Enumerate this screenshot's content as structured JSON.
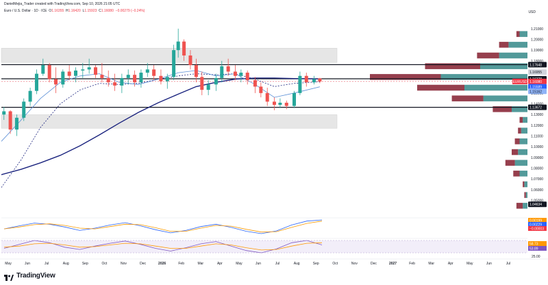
{
  "header": {
    "author_line": "DanielMejia_Trader created with TradingView.com, Sep 10, 2026 21:05 UTC",
    "symbol_line": "Euro / U.S. Dollar · 1D · ICE",
    "ohlc": {
      "o_label": "O",
      "o": "1.16355",
      "h_label": "H",
      "h": "1.16420",
      "l_label": "L",
      "l": "1.15923",
      "c_label": "C",
      "c": "1.16080",
      "change": "−0.00279 (−0.24%)"
    },
    "currency": "USD"
  },
  "logo": {
    "text": "TradingView",
    "icon": "tradingview-logo-icon"
  },
  "colors": {
    "up": "#26a69a",
    "down": "#ef5350",
    "ma_slow": "#1a237e",
    "ma_fast": "#5b8fd6",
    "profile_up": "#3f8f8f",
    "profile_down": "#8b2a3a",
    "zone": "#e6e6e6"
  },
  "chart_data": [
    {
      "type": "candlestick",
      "title": "",
      "ylim": [
        1.035,
        1.215
      ],
      "xlim": [
        "2025-05-01",
        "2027-07-31"
      ],
      "x_ticks": [
        "May",
        "Jun",
        "Jul",
        "Aug",
        "Sep",
        "Oct",
        "Nov",
        "Dec",
        "2026",
        "Feb",
        "Mar",
        "Apr",
        "May",
        "Jun",
        "Jul",
        "Aug",
        "Sep",
        "Oct",
        "Nov",
        "Dec",
        "2027",
        "Feb",
        "Mar",
        "Apr",
        "May",
        "Jun",
        "Jul"
      ],
      "y_ticks": [
        "1.21000",
        "1.20000",
        "1.19000",
        "1.18000",
        "1.16000",
        "1.15000",
        "1.14000",
        "1.13000",
        "1.12000",
        "1.11000",
        "1.10000",
        "1.09000",
        "1.08000",
        "1.07000",
        "1.06000",
        "1.05000"
      ],
      "price_tags": [
        {
          "label": "1.17648",
          "value": 1.17648,
          "style": "dark"
        },
        {
          "label": "1.16955",
          "value": 1.16955,
          "style": "light"
        },
        {
          "label": "1.16328",
          "value": 1.16328,
          "style": "dark"
        },
        {
          "label": "EURUSD",
          "value": 1.1608,
          "style": "red-left"
        },
        {
          "label": "1.16080",
          "value": 1.1608,
          "style": "red"
        },
        {
          "label": "1.15589",
          "value": 1.15589,
          "style": "blue"
        },
        {
          "label": "1.15162",
          "value": 1.15162,
          "style": "lightblue"
        },
        {
          "label": "1.13672",
          "value": 1.13672,
          "style": "dark"
        },
        {
          "label": "1.04634",
          "value": 1.04634,
          "style": "dark"
        }
      ],
      "horizontal_levels": [
        1.17648,
        1.16328,
        1.13672
      ],
      "zones": [
        {
          "from": 1.1785,
          "to": 1.1918
        },
        {
          "from": 1.1172,
          "to": 1.1298
        }
      ],
      "ma_slow": [
        [
          "2025-05-01",
          1.074
        ],
        [
          "2025-06-01",
          1.079
        ],
        [
          "2025-07-01",
          1.085
        ],
        [
          "2025-08-01",
          1.092
        ],
        [
          "2025-09-01",
          1.101
        ],
        [
          "2025-10-01",
          1.111
        ],
        [
          "2025-11-01",
          1.122
        ],
        [
          "2025-12-01",
          1.132
        ],
        [
          "2026-01-01",
          1.141
        ],
        [
          "2026-02-01",
          1.149
        ],
        [
          "2026-03-01",
          1.156
        ],
        [
          "2026-04-01",
          1.16
        ],
        [
          "2026-05-01",
          1.163
        ],
        [
          "2026-06-01",
          1.164
        ],
        [
          "2026-07-01",
          1.164
        ],
        [
          "2026-08-01",
          1.1635
        ],
        [
          "2026-09-10",
          1.1632
        ]
      ],
      "ma_fast": [
        [
          "2025-05-01",
          1.105
        ],
        [
          "2025-06-01",
          1.125
        ],
        [
          "2025-07-01",
          1.145
        ],
        [
          "2025-08-01",
          1.16
        ],
        [
          "2025-09-01",
          1.166
        ],
        [
          "2025-10-01",
          1.168
        ],
        [
          "2025-11-01",
          1.16
        ],
        [
          "2025-12-01",
          1.158
        ],
        [
          "2026-01-01",
          1.163
        ],
        [
          "2026-02-01",
          1.169
        ],
        [
          "2026-03-01",
          1.171
        ],
        [
          "2026-04-01",
          1.166
        ],
        [
          "2026-05-01",
          1.168
        ],
        [
          "2026-06-01",
          1.158
        ],
        [
          "2026-07-01",
          1.146
        ],
        [
          "2026-08-01",
          1.15
        ],
        [
          "2026-09-10",
          1.1558
        ]
      ],
      "ma_mid": [
        [
          "2025-05-01",
          1.062
        ],
        [
          "2025-06-01",
          1.088
        ],
        [
          "2025-07-01",
          1.118
        ],
        [
          "2025-08-01",
          1.14
        ],
        [
          "2025-09-01",
          1.153
        ],
        [
          "2025-10-01",
          1.159
        ],
        [
          "2025-11-01",
          1.158
        ],
        [
          "2025-12-01",
          1.159
        ],
        [
          "2026-01-01",
          1.163
        ],
        [
          "2026-02-01",
          1.166
        ],
        [
          "2026-03-01",
          1.168
        ],
        [
          "2026-04-01",
          1.167
        ],
        [
          "2026-05-01",
          1.168
        ],
        [
          "2026-06-01",
          1.163
        ],
        [
          "2026-07-01",
          1.156
        ],
        [
          "2026-08-01",
          1.159
        ],
        [
          "2026-09-10",
          1.1605
        ]
      ],
      "candles": [
        [
          "2025-05-05",
          1.13,
          1.137,
          1.125,
          1.133
        ],
        [
          "2025-05-15",
          1.133,
          1.134,
          1.112,
          1.116
        ],
        [
          "2025-05-25",
          1.116,
          1.13,
          1.11,
          1.127
        ],
        [
          "2025-06-05",
          1.127,
          1.145,
          1.124,
          1.142
        ],
        [
          "2025-06-15",
          1.142,
          1.155,
          1.138,
          1.152
        ],
        [
          "2025-06-25",
          1.152,
          1.172,
          1.149,
          1.168
        ],
        [
          "2025-07-05",
          1.168,
          1.182,
          1.166,
          1.176
        ],
        [
          "2025-07-15",
          1.176,
          1.178,
          1.16,
          1.163
        ],
        [
          "2025-07-25",
          1.163,
          1.174,
          1.15,
          1.158
        ],
        [
          "2025-08-05",
          1.158,
          1.172,
          1.155,
          1.17
        ],
        [
          "2025-08-15",
          1.17,
          1.176,
          1.162,
          1.166
        ],
        [
          "2025-08-25",
          1.166,
          1.174,
          1.16,
          1.171
        ],
        [
          "2025-09-05",
          1.171,
          1.178,
          1.164,
          1.172
        ],
        [
          "2025-09-15",
          1.172,
          1.182,
          1.168,
          1.174
        ],
        [
          "2025-09-25",
          1.174,
          1.176,
          1.164,
          1.167
        ],
        [
          "2025-10-05",
          1.167,
          1.178,
          1.16,
          1.164
        ],
        [
          "2025-10-15",
          1.164,
          1.171,
          1.156,
          1.16
        ],
        [
          "2025-10-25",
          1.16,
          1.168,
          1.152,
          1.157
        ],
        [
          "2025-11-05",
          1.157,
          1.168,
          1.15,
          1.164
        ],
        [
          "2025-11-15",
          1.164,
          1.172,
          1.158,
          1.167
        ],
        [
          "2025-11-25",
          1.167,
          1.171,
          1.156,
          1.16
        ],
        [
          "2025-12-05",
          1.16,
          1.172,
          1.155,
          1.169
        ],
        [
          "2025-12-15",
          1.169,
          1.178,
          1.165,
          1.172
        ],
        [
          "2025-12-25",
          1.172,
          1.176,
          1.162,
          1.166
        ],
        [
          "2026-01-05",
          1.166,
          1.172,
          1.158,
          1.161
        ],
        [
          "2026-01-15",
          1.161,
          1.168,
          1.154,
          1.165
        ],
        [
          "2026-01-25",
          1.165,
          1.195,
          1.162,
          1.19
        ],
        [
          "2026-02-01",
          1.19,
          1.21,
          1.183,
          1.198
        ],
        [
          "2026-02-10",
          1.198,
          1.2,
          1.18,
          1.185
        ],
        [
          "2026-02-20",
          1.185,
          1.19,
          1.172,
          1.176
        ],
        [
          "2026-03-01",
          1.176,
          1.182,
          1.16,
          1.165
        ],
        [
          "2026-03-10",
          1.165,
          1.17,
          1.148,
          1.153
        ],
        [
          "2026-03-20",
          1.153,
          1.162,
          1.148,
          1.158
        ],
        [
          "2026-04-01",
          1.158,
          1.168,
          1.152,
          1.164
        ],
        [
          "2026-04-10",
          1.164,
          1.18,
          1.16,
          1.175
        ],
        [
          "2026-04-20",
          1.175,
          1.182,
          1.166,
          1.17
        ],
        [
          "2026-05-01",
          1.17,
          1.176,
          1.162,
          1.166
        ],
        [
          "2026-05-10",
          1.166,
          1.172,
          1.16,
          1.169
        ],
        [
          "2026-05-20",
          1.169,
          1.171,
          1.158,
          1.162
        ],
        [
          "2026-06-01",
          1.162,
          1.165,
          1.15,
          1.156
        ],
        [
          "2026-06-10",
          1.156,
          1.16,
          1.146,
          1.15
        ],
        [
          "2026-06-20",
          1.15,
          1.155,
          1.138,
          1.142
        ],
        [
          "2026-07-01",
          1.142,
          1.146,
          1.134,
          1.139
        ],
        [
          "2026-07-10",
          1.139,
          1.145,
          1.136,
          1.141
        ],
        [
          "2026-07-20",
          1.141,
          1.143,
          1.135,
          1.138
        ],
        [
          "2026-08-01",
          1.138,
          1.152,
          1.136,
          1.15
        ],
        [
          "2026-08-10",
          1.15,
          1.17,
          1.148,
          1.166
        ],
        [
          "2026-08-20",
          1.166,
          1.169,
          1.156,
          1.16
        ],
        [
          "2026-09-01",
          1.16,
          1.166,
          1.158,
          1.163
        ],
        [
          "2026-09-10",
          1.1636,
          1.1642,
          1.1592,
          1.1608
        ]
      ],
      "volume_profile": [
        {
          "price": 1.205,
          "up": 0.05,
          "down": 0.02
        },
        {
          "price": 1.195,
          "up": 0.12,
          "down": 0.06
        },
        {
          "price": 1.185,
          "up": 0.18,
          "down": 0.14
        },
        {
          "price": 1.175,
          "up": 0.3,
          "down": 0.35
        },
        {
          "price": 1.165,
          "up": 0.55,
          "down": 0.45
        },
        {
          "price": 1.155,
          "up": 0.4,
          "down": 0.3
        },
        {
          "price": 1.145,
          "up": 0.28,
          "down": 0.2
        },
        {
          "price": 1.135,
          "up": 0.1,
          "down": 0.12
        },
        {
          "price": 1.125,
          "up": 0.03,
          "down": 0.02
        },
        {
          "price": 1.115,
          "up": 0.04,
          "down": 0.02
        },
        {
          "price": 1.105,
          "up": 0.05,
          "down": 0.03
        },
        {
          "price": 1.095,
          "up": 0.06,
          "down": 0.04
        },
        {
          "price": 1.085,
          "up": 0.08,
          "down": 0.06
        },
        {
          "price": 1.075,
          "up": 0.05,
          "down": 0.04
        },
        {
          "price": 1.065,
          "up": 0.02,
          "down": 0.01
        },
        {
          "price": 1.055,
          "up": 0.01,
          "down": 0.01
        },
        {
          "price": 1.045,
          "up": 0.03,
          "down": 0.04
        }
      ]
    },
    {
      "type": "line",
      "title": "",
      "y_tags": [
        {
          "label": "0.00199",
          "style": "orange"
        },
        {
          "label": "0.00229",
          "style": "blue"
        },
        {
          "label": "−0.00003",
          "style": "red"
        }
      ],
      "series": [
        {
          "values": [
            0.0,
            0.0008,
            0.0015,
            0.0012,
            0.0005,
            -0.0004,
            0.0002,
            0.001,
            0.0016,
            0.0008,
            -0.0002,
            -0.001,
            -0.0004,
            0.0006,
            0.0012,
            0.0004,
            -0.0006,
            -0.0012,
            -0.0005,
            0.001,
            0.002,
            0.0023
          ]
        },
        {
          "values": [
            0.0,
            0.0005,
            0.0011,
            0.0013,
            0.0009,
            0.0002,
            0.0,
            0.0006,
            0.0012,
            0.0011,
            0.0003,
            -0.0006,
            -0.0006,
            0.0002,
            0.0009,
            0.0007,
            -0.0001,
            -0.0008,
            -0.0007,
            0.0004,
            0.0014,
            0.002
          ]
        }
      ]
    },
    {
      "type": "line",
      "title": "",
      "y_ticks": [
        "25.00"
      ],
      "y_tags": [
        {
          "label": "58.73",
          "style": "orange"
        },
        {
          "label": "53.89",
          "style": "purple"
        }
      ],
      "series": [
        {
          "values": [
            48,
            55,
            62,
            58,
            50,
            46,
            52,
            57,
            61,
            55,
            48,
            43,
            49,
            56,
            60,
            52,
            44,
            40,
            47,
            58,
            62,
            54
          ]
        },
        {
          "values": [
            50,
            52,
            56,
            57,
            54,
            50,
            51,
            54,
            57,
            56,
            52,
            48,
            48,
            52,
            56,
            54,
            49,
            45,
            46,
            52,
            57,
            58
          ]
        }
      ]
    }
  ]
}
